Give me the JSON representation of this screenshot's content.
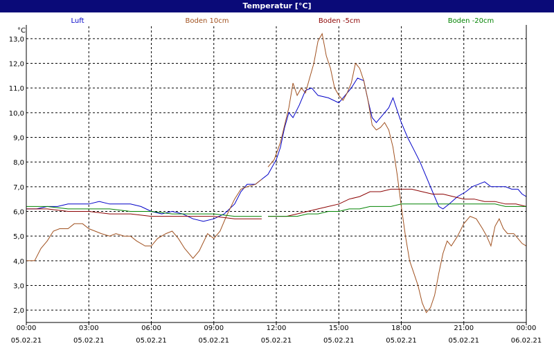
{
  "window": {
    "title": "Temperatur [°C]"
  },
  "chart_data": {
    "type": "line",
    "title": "Temperatur [°C]",
    "ylabel": "°C",
    "xlim_hours": [
      0,
      24
    ],
    "ylim": [
      1.5,
      13.5
    ],
    "grid": true,
    "legend_placement": "top",
    "y_ticks": [
      {
        "value": 2,
        "label": "2,0"
      },
      {
        "value": 3,
        "label": "3,0"
      },
      {
        "value": 4,
        "label": "4,0"
      },
      {
        "value": 5,
        "label": "5,0"
      },
      {
        "value": 6,
        "label": "6,0"
      },
      {
        "value": 7,
        "label": "7,0"
      },
      {
        "value": 8,
        "label": "8,0"
      },
      {
        "value": 9,
        "label": "9,0"
      },
      {
        "value": 10,
        "label": "10,0"
      },
      {
        "value": 11,
        "label": "11,0"
      },
      {
        "value": 12,
        "label": "12,0"
      },
      {
        "value": 13,
        "label": "13,0"
      }
    ],
    "x_ticks": [
      {
        "hour": 0,
        "time": "00:00",
        "date": "05.02.21"
      },
      {
        "hour": 3,
        "time": "03:00",
        "date": "05.02.21"
      },
      {
        "hour": 6,
        "time": "06:00",
        "date": "05.02.21"
      },
      {
        "hour": 9,
        "time": "09:00",
        "date": "05.02.21"
      },
      {
        "hour": 12,
        "time": "12:00",
        "date": "05.02.21"
      },
      {
        "hour": 15,
        "time": "15:00",
        "date": "05.02.21"
      },
      {
        "hour": 18,
        "time": "18:00",
        "date": "05.02.21"
      },
      {
        "hour": 21,
        "time": "21:00",
        "date": "05.02.21"
      },
      {
        "hour": 24,
        "time": "00:00",
        "date": "06.02.21"
      }
    ],
    "series": [
      {
        "name": "Luft",
        "color": "#0000c8",
        "segments": [
          [
            [
              0,
              6.1
            ],
            [
              0.5,
              6.1
            ],
            [
              1,
              6.2
            ],
            [
              1.5,
              6.2
            ],
            [
              2,
              6.3
            ],
            [
              3,
              6.3
            ],
            [
              3.5,
              6.4
            ],
            [
              4,
              6.3
            ],
            [
              5,
              6.3
            ],
            [
              5.5,
              6.2
            ],
            [
              6,
              6.0
            ],
            [
              6.5,
              5.9
            ],
            [
              7,
              6.0
            ],
            [
              7.5,
              5.9
            ],
            [
              8,
              5.7
            ],
            [
              8.5,
              5.6
            ],
            [
              9,
              5.7
            ],
            [
              9.5,
              5.9
            ],
            [
              10,
              6.3
            ],
            [
              10.3,
              6.8
            ],
            [
              10.6,
              7.1
            ],
            [
              11,
              7.1
            ],
            [
              11.3,
              7.3
            ],
            [
              11.6,
              7.5
            ],
            [
              12,
              8.1
            ],
            [
              12.2,
              8.6
            ],
            [
              12.4,
              9.4
            ],
            [
              12.6,
              10.0
            ],
            [
              12.8,
              9.8
            ],
            [
              13.1,
              10.3
            ],
            [
              13.4,
              10.9
            ],
            [
              13.7,
              11.0
            ],
            [
              14,
              10.7
            ],
            [
              14.5,
              10.6
            ],
            [
              15,
              10.4
            ],
            [
              15.3,
              10.7
            ],
            [
              15.6,
              11.0
            ],
            [
              15.9,
              11.4
            ],
            [
              16.2,
              11.3
            ],
            [
              16.4,
              10.5
            ],
            [
              16.6,
              9.8
            ],
            [
              16.8,
              9.6
            ],
            [
              17.1,
              9.9
            ],
            [
              17.4,
              10.2
            ],
            [
              17.6,
              10.6
            ],
            [
              17.8,
              10.1
            ],
            [
              18,
              9.6
            ],
            [
              18.3,
              9.0
            ],
            [
              18.6,
              8.5
            ],
            [
              18.9,
              8.0
            ],
            [
              19.2,
              7.4
            ],
            [
              19.5,
              6.8
            ],
            [
              19.8,
              6.2
            ],
            [
              20,
              6.1
            ],
            [
              20.3,
              6.3
            ],
            [
              20.7,
              6.6
            ],
            [
              21.1,
              6.8
            ],
            [
              21.4,
              7.0
            ],
            [
              21.7,
              7.1
            ],
            [
              22,
              7.2
            ],
            [
              22.3,
              7.0
            ],
            [
              22.6,
              7.0
            ],
            [
              23,
              7.0
            ],
            [
              23.3,
              6.9
            ],
            [
              23.6,
              6.9
            ],
            [
              23.8,
              6.7
            ],
            [
              24,
              6.6
            ]
          ]
        ]
      },
      {
        "name": "Boden 10cm",
        "color": "#a0501e",
        "segments": [
          [
            [
              0,
              4.0
            ],
            [
              0.4,
              4.0
            ],
            [
              0.7,
              4.5
            ],
            [
              1,
              4.8
            ],
            [
              1.3,
              5.2
            ],
            [
              1.6,
              5.3
            ],
            [
              2,
              5.3
            ],
            [
              2.3,
              5.5
            ],
            [
              2.7,
              5.5
            ],
            [
              3,
              5.3
            ],
            [
              3.3,
              5.2
            ],
            [
              3.6,
              5.1
            ],
            [
              4,
              5.0
            ],
            [
              4.3,
              5.1
            ],
            [
              4.7,
              5.0
            ],
            [
              5,
              5.0
            ],
            [
              5.3,
              4.8
            ],
            [
              5.7,
              4.6
            ],
            [
              6,
              4.6
            ],
            [
              6.3,
              4.9
            ],
            [
              6.7,
              5.1
            ],
            [
              7,
              5.2
            ],
            [
              7.3,
              4.9
            ],
            [
              7.6,
              4.5
            ],
            [
              8,
              4.1
            ],
            [
              8.3,
              4.4
            ],
            [
              8.7,
              5.1
            ],
            [
              9,
              4.9
            ],
            [
              9.3,
              5.2
            ],
            [
              9.6,
              5.8
            ],
            [
              10,
              6.5
            ],
            [
              10.3,
              6.9
            ],
            [
              10.6,
              7.0
            ],
            [
              11,
              7.1
            ],
            [
              11.3,
              7.3
            ]
          ],
          [
            [
              11.6,
              7.8
            ],
            [
              11.9,
              8.1
            ],
            [
              12.2,
              8.8
            ],
            [
              12.4,
              9.5
            ],
            [
              12.6,
              10.2
            ],
            [
              12.8,
              11.2
            ],
            [
              13,
              10.7
            ],
            [
              13.2,
              11.0
            ],
            [
              13.4,
              10.8
            ],
            [
              13.6,
              11.4
            ],
            [
              13.8,
              12.0
            ],
            [
              14,
              12.9
            ],
            [
              14.2,
              13.2
            ],
            [
              14.4,
              12.3
            ],
            [
              14.6,
              11.8
            ],
            [
              14.8,
              11.0
            ],
            [
              15,
              10.7
            ],
            [
              15.2,
              10.5
            ],
            [
              15.4,
              10.8
            ],
            [
              15.6,
              11.2
            ],
            [
              15.8,
              12.0
            ],
            [
              16,
              11.8
            ],
            [
              16.2,
              11.3
            ],
            [
              16.4,
              10.5
            ],
            [
              16.6,
              9.5
            ],
            [
              16.8,
              9.3
            ],
            [
              17,
              9.4
            ],
            [
              17.2,
              9.6
            ],
            [
              17.4,
              9.3
            ],
            [
              17.6,
              8.6
            ],
            [
              17.8,
              7.5
            ],
            [
              18,
              6.2
            ],
            [
              18.2,
              5.0
            ],
            [
              18.4,
              4.0
            ],
            [
              18.6,
              3.5
            ],
            [
              18.8,
              3.0
            ],
            [
              19,
              2.3
            ],
            [
              19.2,
              1.9
            ],
            [
              19.4,
              2.1
            ],
            [
              19.6,
              2.6
            ],
            [
              19.8,
              3.5
            ],
            [
              20,
              4.3
            ],
            [
              20.2,
              4.8
            ],
            [
              20.4,
              4.6
            ],
            [
              20.7,
              5.0
            ],
            [
              21,
              5.5
            ],
            [
              21.3,
              5.8
            ],
            [
              21.6,
              5.7
            ],
            [
              21.9,
              5.3
            ],
            [
              22.1,
              5.0
            ],
            [
              22.3,
              4.6
            ],
            [
              22.5,
              5.4
            ],
            [
              22.7,
              5.7
            ],
            [
              22.9,
              5.3
            ],
            [
              23.1,
              5.1
            ],
            [
              23.4,
              5.1
            ],
            [
              23.6,
              4.9
            ],
            [
              23.8,
              4.7
            ],
            [
              24,
              4.6
            ]
          ]
        ]
      },
      {
        "name": "Boden -5cm",
        "color": "#8b0000",
        "segments": [
          [
            [
              0,
              6.1
            ],
            [
              1,
              6.1
            ],
            [
              2,
              6.0
            ],
            [
              3,
              6.0
            ],
            [
              4,
              5.9
            ],
            [
              5,
              5.9
            ],
            [
              6,
              5.8
            ],
            [
              7,
              5.8
            ],
            [
              8,
              5.8
            ],
            [
              9,
              5.8
            ],
            [
              10,
              5.7
            ],
            [
              11,
              5.7
            ],
            [
              11.3,
              5.7
            ]
          ],
          [
            [
              11.6,
              5.8
            ],
            [
              12,
              5.8
            ],
            [
              12.5,
              5.8
            ],
            [
              13,
              5.9
            ],
            [
              13.5,
              6.0
            ],
            [
              14,
              6.1
            ],
            [
              14.5,
              6.2
            ],
            [
              15,
              6.3
            ],
            [
              15.5,
              6.5
            ],
            [
              16,
              6.6
            ],
            [
              16.5,
              6.8
            ],
            [
              17,
              6.8
            ],
            [
              17.5,
              6.9
            ],
            [
              18,
              6.9
            ],
            [
              18.5,
              6.9
            ],
            [
              19,
              6.8
            ],
            [
              19.5,
              6.7
            ],
            [
              20,
              6.7
            ],
            [
              20.5,
              6.6
            ],
            [
              21,
              6.5
            ],
            [
              21.5,
              6.5
            ],
            [
              22,
              6.4
            ],
            [
              22.5,
              6.4
            ],
            [
              23,
              6.3
            ],
            [
              23.5,
              6.3
            ],
            [
              24,
              6.2
            ]
          ]
        ]
      },
      {
        "name": "Boden -20cm",
        "color": "#008200",
        "segments": [
          [
            [
              0,
              6.2
            ],
            [
              1,
              6.2
            ],
            [
              2,
              6.1
            ],
            [
              3,
              6.1
            ],
            [
              4,
              6.1
            ],
            [
              5,
              6.0
            ],
            [
              6,
              6.0
            ],
            [
              7,
              5.9
            ],
            [
              8,
              5.9
            ],
            [
              9,
              5.9
            ],
            [
              10,
              5.8
            ],
            [
              11,
              5.8
            ],
            [
              11.3,
              5.8
            ]
          ],
          [
            [
              11.6,
              5.8
            ],
            [
              12,
              5.8
            ],
            [
              12.5,
              5.8
            ],
            [
              13,
              5.8
            ],
            [
              13.5,
              5.9
            ],
            [
              14,
              5.9
            ],
            [
              14.5,
              6.0
            ],
            [
              15,
              6.0
            ],
            [
              15.5,
              6.1
            ],
            [
              16,
              6.1
            ],
            [
              16.5,
              6.2
            ],
            [
              17,
              6.2
            ],
            [
              17.5,
              6.2
            ],
            [
              18,
              6.3
            ],
            [
              18.5,
              6.3
            ],
            [
              19,
              6.3
            ],
            [
              19.5,
              6.3
            ],
            [
              20,
              6.3
            ],
            [
              20.5,
              6.3
            ],
            [
              21,
              6.3
            ],
            [
              21.5,
              6.3
            ],
            [
              22,
              6.3
            ],
            [
              22.5,
              6.3
            ],
            [
              23,
              6.2
            ],
            [
              23.5,
              6.2
            ],
            [
              24,
              6.2
            ]
          ]
        ]
      }
    ]
  }
}
